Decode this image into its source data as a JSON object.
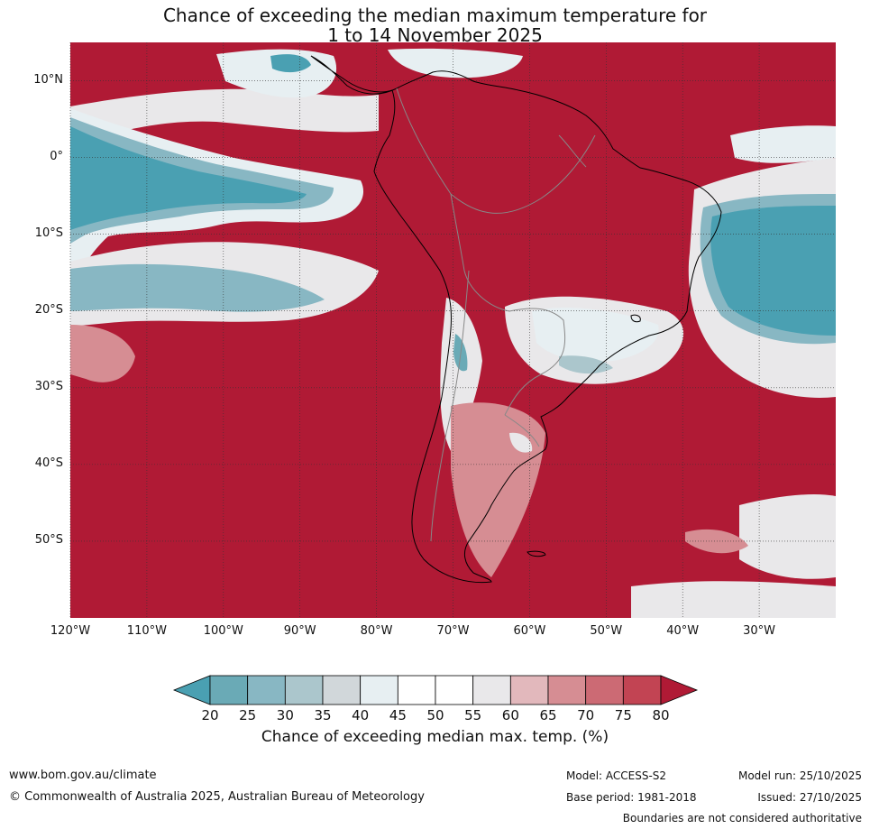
{
  "title": {
    "line1": "Chance of exceeding the median maximum temperature for",
    "line2": "1 to 14 November 2025"
  },
  "map": {
    "lat_labels": [
      "10°N",
      "0°",
      "10°S",
      "20°S",
      "30°S",
      "40°S",
      "50°S"
    ],
    "lat_values": [
      10,
      0,
      -10,
      -20,
      -30,
      -40,
      -50
    ],
    "lon_labels": [
      "120°W",
      "110°W",
      "100°W",
      "90°W",
      "80°W",
      "70°W",
      "60°W",
      "50°W",
      "40°W",
      "30°W"
    ],
    "lon_values": [
      -120,
      -110,
      -100,
      -90,
      -80,
      -70,
      -60,
      -50,
      -40,
      -30
    ],
    "extent": {
      "lon_min": -120,
      "lon_max": -20,
      "lat_min": -60,
      "lat_max": 15
    },
    "colors": {
      "c80": "#b01a35",
      "c75": "#c24453",
      "c70": "#cc6a74",
      "c65": "#d68d93",
      "c60": "#e2b8bc",
      "c55": "#e9e8ea",
      "c50": "#ffffff",
      "c45": "#e7eff2",
      "c40": "#d1d7da",
      "c35": "#abc6cc",
      "c30": "#88b7c3",
      "c25": "#6aaab6",
      "c20": "#4aa0b2",
      "land_outline": "#000000",
      "border": "#888888"
    }
  },
  "colorbar": {
    "ticks": [
      "20",
      "25",
      "30",
      "35",
      "40",
      "45",
      "50",
      "55",
      "60",
      "65",
      "70",
      "75",
      "80"
    ],
    "colors": [
      "#6aaab6",
      "#88b7c3",
      "#abc6cc",
      "#d1d7da",
      "#e7eff2",
      "#ffffff",
      "#ffffff",
      "#e9e8ea",
      "#e2b8bc",
      "#d68d93",
      "#cc6a74",
      "#c24453"
    ],
    "low_color": "#4aa0b2",
    "high_color": "#b01a35",
    "label": "Chance of exceeding median max. temp. (%)"
  },
  "footer": {
    "website": "www.bom.gov.au/climate",
    "copyright": "© Commonwealth of Australia 2025, Australian Bureau of Meteorology",
    "model": "Model: ACCESS-S2",
    "base_period": "Base period: 1981-2018",
    "model_run": "Model run: 25/10/2025",
    "issued": "Issued: 27/10/2025",
    "disclaimer": "Boundaries are not considered authoritative"
  }
}
